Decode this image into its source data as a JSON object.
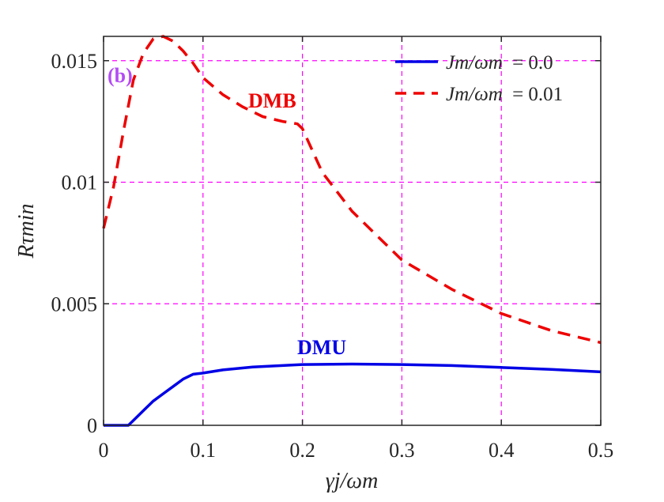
{
  "chart_data": {
    "type": "line",
    "panel_label": "(b)",
    "xlabel": "γj/ωm",
    "ylabel": "Rτmin",
    "xlim": [
      0,
      0.5
    ],
    "ylim": [
      0,
      0.016
    ],
    "grid": true,
    "xticks": [
      0,
      0.1,
      0.2,
      0.3,
      0.4,
      0.5
    ],
    "xtick_labels": [
      "0",
      "0.1",
      "0.2",
      "0.3",
      "0.4",
      "0.5"
    ],
    "yticks": [
      0,
      0.005,
      0.01,
      0.015
    ],
    "ytick_labels": [
      "0",
      "0.005",
      "0.01",
      "0.015"
    ],
    "legend_position": "top-right",
    "colors": {
      "series_dmu": "#0000e6",
      "series_dmb": "#ee0000",
      "grid": "#ff00ff",
      "panel_label": "#b44cf5"
    },
    "series": [
      {
        "name": "Jm/ωm = 0.0",
        "legend_lhs": "Jm/ωm",
        "legend_rhs": "= 0.0",
        "label": "DMU",
        "style": "solid",
        "x": [
          0,
          0.025,
          0.03,
          0.04,
          0.05,
          0.06,
          0.07,
          0.08,
          0.09,
          0.1,
          0.12,
          0.15,
          0.2,
          0.25,
          0.3,
          0.35,
          0.4,
          0.45,
          0.5
        ],
        "values": [
          0,
          0,
          0.0002,
          0.0006,
          0.001,
          0.0013,
          0.0016,
          0.0019,
          0.0021,
          0.00215,
          0.00228,
          0.0024,
          0.0025,
          0.00252,
          0.0025,
          0.00246,
          0.00238,
          0.0023,
          0.0022
        ]
      },
      {
        "name": "Jm/ωm = 0.01",
        "legend_lhs": "Jm/ωm",
        "legend_rhs": "= 0.01",
        "label": "DMB",
        "style": "dashed",
        "x": [
          0,
          0.01,
          0.02,
          0.03,
          0.04,
          0.05,
          0.06,
          0.07,
          0.08,
          0.09,
          0.1,
          0.12,
          0.14,
          0.16,
          0.18,
          0.195,
          0.2,
          0.22,
          0.25,
          0.3,
          0.35,
          0.4,
          0.45,
          0.5
        ],
        "values": [
          0.0081,
          0.0098,
          0.0121,
          0.0142,
          0.0153,
          0.0159,
          0.016,
          0.0158,
          0.0154,
          0.0149,
          0.0143,
          0.0136,
          0.0131,
          0.0127,
          0.0125,
          0.0124,
          0.0122,
          0.0104,
          0.0088,
          0.0068,
          0.0056,
          0.0046,
          0.0039,
          0.0034
        ]
      }
    ]
  }
}
